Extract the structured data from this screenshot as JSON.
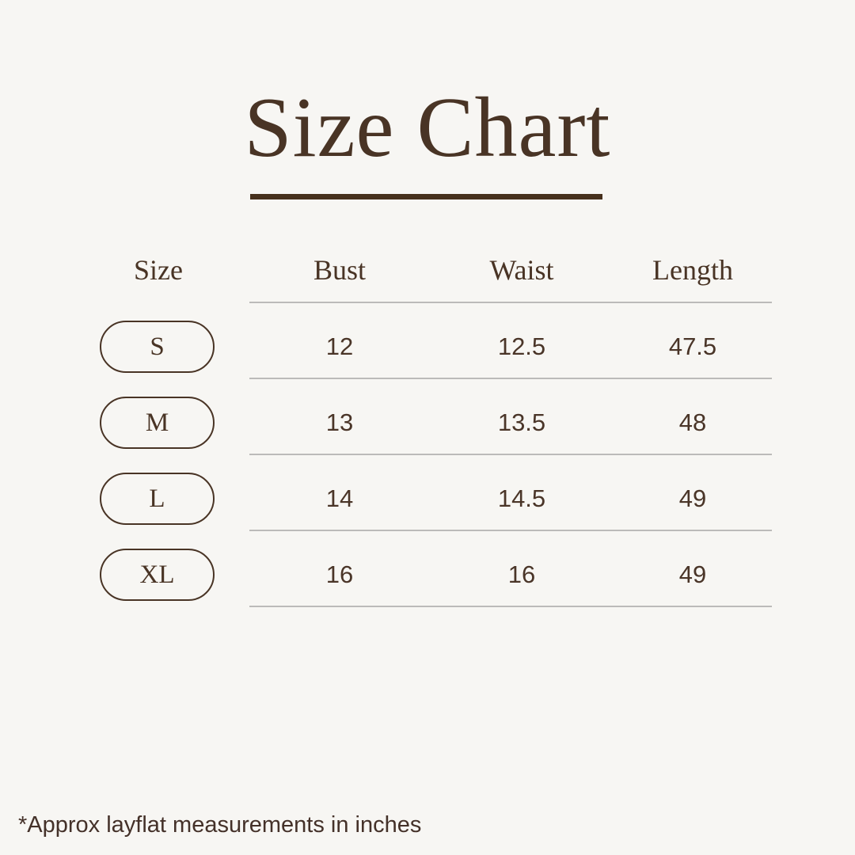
{
  "page": {
    "background_color": "#F7F6F3",
    "accent_brown": "#493425",
    "line_gray": "#BCBBB9"
  },
  "title": {
    "text": "Size Chart"
  },
  "table": {
    "headers": {
      "size": "Size",
      "bust": "Bust",
      "waist": "Waist",
      "length": "Length"
    },
    "rows": [
      {
        "size": "S",
        "bust": "12",
        "waist": "12.5",
        "length": "47.5"
      },
      {
        "size": "M",
        "bust": "13",
        "waist": "13.5",
        "length": "48"
      },
      {
        "size": "L",
        "bust": "14",
        "waist": "14.5",
        "length": "49"
      },
      {
        "size": "XL",
        "bust": "16",
        "waist": "16",
        "length": "49"
      }
    ]
  },
  "footnote": {
    "text": "*Approx layflat measurements in inches"
  },
  "chart_data": {
    "type": "table",
    "title": "Size Chart",
    "columns": [
      "Size",
      "Bust",
      "Waist",
      "Length"
    ],
    "rows": [
      [
        "S",
        12,
        12.5,
        47.5
      ],
      [
        "M",
        13,
        13.5,
        48
      ],
      [
        "L",
        14,
        14.5,
        49
      ],
      [
        "XL",
        16,
        16,
        49
      ]
    ],
    "note": "*Approx layflat measurements in inches",
    "units": "inches"
  }
}
